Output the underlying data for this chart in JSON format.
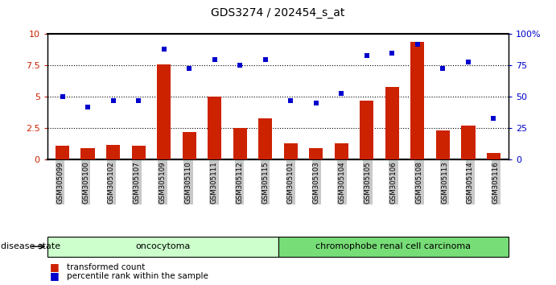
{
  "title": "GDS3274 / 202454_s_at",
  "samples": [
    "GSM305099",
    "GSM305100",
    "GSM305102",
    "GSM305107",
    "GSM305109",
    "GSM305110",
    "GSM305111",
    "GSM305112",
    "GSM305115",
    "GSM305101",
    "GSM305103",
    "GSM305104",
    "GSM305105",
    "GSM305106",
    "GSM305108",
    "GSM305113",
    "GSM305114",
    "GSM305116"
  ],
  "bar_values": [
    1.1,
    0.9,
    1.2,
    1.1,
    7.6,
    2.2,
    5.0,
    2.5,
    3.3,
    1.3,
    0.9,
    1.3,
    4.7,
    5.8,
    9.4,
    2.3,
    2.7,
    0.5
  ],
  "dot_values": [
    50,
    42,
    47,
    47,
    88,
    73,
    80,
    75,
    80,
    47,
    45,
    53,
    83,
    85,
    92,
    73,
    78,
    33
  ],
  "bar_color": "#cc2200",
  "dot_color": "#0000cc",
  "ylim_left": [
    0,
    10
  ],
  "ylim_right": [
    0,
    100
  ],
  "yticks_left": [
    0,
    2.5,
    5.0,
    7.5,
    10
  ],
  "ytick_labels_left": [
    "0",
    "2.5",
    "5",
    "7.5",
    "10"
  ],
  "ytick_labels_right": [
    "0",
    "25",
    "50",
    "75",
    "100%"
  ],
  "group1_label": "oncocytoma",
  "group1_count": 9,
  "group2_label": "chromophobe renal cell carcinoma",
  "group2_count": 9,
  "group1_color": "#ccffcc",
  "group2_color": "#77dd77",
  "disease_state_label": "disease state",
  "legend_bar": "transformed count",
  "legend_dot": "percentile rank within the sample",
  "xlabel_bg": "#c8c8c8",
  "grid_vals": [
    2.5,
    5.0,
    7.5
  ]
}
